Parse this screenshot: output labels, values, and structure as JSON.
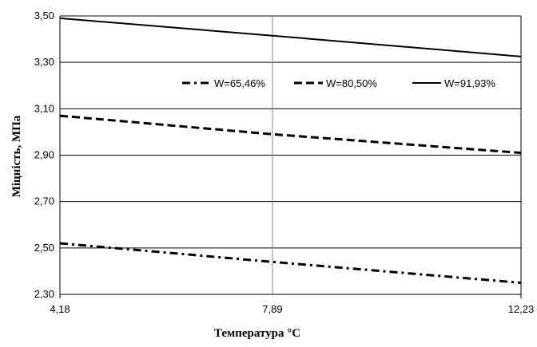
{
  "chart_data": {
    "type": "line",
    "title": "",
    "xlabel": "Температура °С",
    "ylabel": "Міцність, МПа",
    "x": [
      "4,18",
      "7,89",
      "12,23"
    ],
    "x_numeric": [
      4.18,
      7.89,
      12.23
    ],
    "xlim": [
      4.18,
      12.23
    ],
    "ylim": [
      2.3,
      3.5
    ],
    "y_ticks": [
      "2,30",
      "2,50",
      "2,70",
      "2,90",
      "3,10",
      "3,30",
      "3,50"
    ],
    "y_ticks_numeric": [
      2.3,
      2.5,
      2.7,
      2.9,
      3.1,
      3.3,
      3.5
    ],
    "grid": "horizontal major lines and vertical line at x=7,89",
    "legend_position": "upper-right inside plot",
    "series": [
      {
        "name": "W=65,46%",
        "style": "dash-dot",
        "color": "#000000",
        "values": [
          2.52,
          2.44,
          2.35
        ]
      },
      {
        "name": "W=80,50%",
        "style": "dashed",
        "color": "#000000",
        "values": [
          3.07,
          2.99,
          2.91
        ]
      },
      {
        "name": "W=91,93%",
        "style": "solid",
        "color": "#000000",
        "values": [
          3.49,
          3.415,
          3.325
        ]
      }
    ]
  }
}
